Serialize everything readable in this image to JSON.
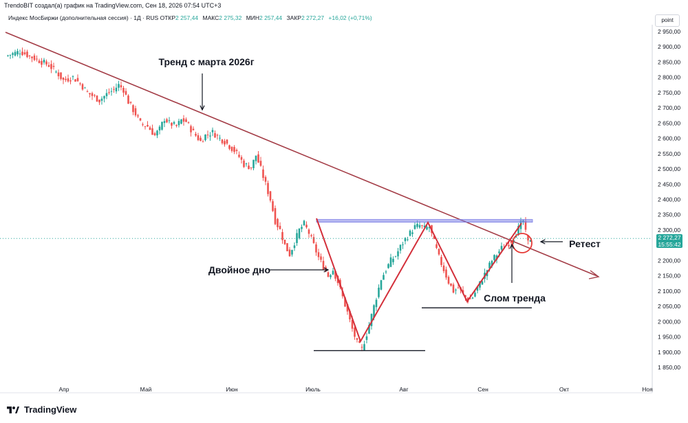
{
  "header": {
    "caption": "TrendoBIT создал(а) график на TradingView.com, Сен 18, 2026 07:54 UTC+3",
    "symbol": "Индекс МосБиржи (дополнительная сессия) · 1Д · RUS",
    "open_label": "ОТКР",
    "open_value": "2 257,44",
    "high_label": "МАКС",
    "high_value": "2 275,32",
    "low_label": "МИН",
    "low_value": "2 257,44",
    "close_label": "ЗАКР",
    "close_value": "2 272,27",
    "change": "+16,02 (+0,71%)"
  },
  "unit_button": "point",
  "last_price": {
    "value": "2 272,27",
    "time": "15:55:42"
  },
  "brand": {
    "name": "TradingView"
  },
  "colors": {
    "up": "#26a69a",
    "down": "#ef5350",
    "trendline": "#a33b45",
    "pattern": "#d32f3a",
    "resistance": "#7b7fe6",
    "price_line": "#26a69a"
  },
  "chart_data": {
    "type": "candlestick",
    "x_labels": [
      "Апр",
      "Май",
      "Июн",
      "Июль",
      "Авг",
      "Сен",
      "Окт",
      "Ноя"
    ],
    "y_ticks": [
      "2 950,00",
      "2 900,00",
      "2 850,00",
      "2 800,00",
      "2 750,00",
      "2 700,00",
      "2 650,00",
      "2 600,00",
      "2 550,00",
      "2 500,00",
      "2 450,00",
      "2 400,00",
      "2 350,00",
      "2 300,00",
      "2 250,00",
      "2 200,00",
      "2 150,00",
      "2 100,00",
      "2 050,00",
      "2 000,00",
      "1 950,00",
      "1 900,00",
      "1 850,00"
    ],
    "ylim": [
      1820,
      2970
    ],
    "close_path": [
      [
        0,
        2870
      ],
      [
        6,
        2885
      ],
      [
        10,
        2870
      ],
      [
        14,
        2855
      ],
      [
        18,
        2840
      ],
      [
        22,
        2810
      ],
      [
        24,
        2790
      ],
      [
        28,
        2800
      ],
      [
        31,
        2780
      ],
      [
        34,
        2750
      ],
      [
        37,
        2735
      ],
      [
        39,
        2725
      ],
      [
        42,
        2745
      ],
      [
        45,
        2760
      ],
      [
        47,
        2775
      ],
      [
        49,
        2760
      ],
      [
        51,
        2720
      ],
      [
        54,
        2680
      ],
      [
        56,
        2650
      ],
      [
        59,
        2640
      ],
      [
        62,
        2610
      ],
      [
        64,
        2630
      ],
      [
        66,
        2665
      ],
      [
        68,
        2650
      ],
      [
        71,
        2640
      ],
      [
        73,
        2660
      ],
      [
        75,
        2655
      ],
      [
        77,
        2630
      ],
      [
        79,
        2610
      ],
      [
        81,
        2590
      ],
      [
        83,
        2610
      ],
      [
        86,
        2620
      ],
      [
        89,
        2600
      ],
      [
        91,
        2590
      ],
      [
        93,
        2575
      ],
      [
        95,
        2560
      ],
      [
        97,
        2540
      ],
      [
        99,
        2515
      ],
      [
        102,
        2505
      ],
      [
        104,
        2545
      ],
      [
        106,
        2500
      ],
      [
        108,
        2450
      ],
      [
        110,
        2400
      ],
      [
        112,
        2330
      ],
      [
        114,
        2300
      ],
      [
        116,
        2250
      ],
      [
        118,
        2220
      ],
      [
        120,
        2260
      ],
      [
        122,
        2300
      ],
      [
        124,
        2320
      ],
      [
        126,
        2290
      ],
      [
        128,
        2250
      ],
      [
        130,
        2210
      ],
      [
        132,
        2180
      ],
      [
        134,
        2150
      ],
      [
        136,
        2170
      ],
      [
        138,
        2130
      ],
      [
        140,
        2080
      ],
      [
        142,
        2030
      ],
      [
        144,
        1975
      ],
      [
        146,
        1930
      ],
      [
        148,
        1910
      ],
      [
        150,
        1960
      ],
      [
        152,
        2020
      ],
      [
        154,
        2080
      ],
      [
        156,
        2140
      ],
      [
        158,
        2170
      ],
      [
        160,
        2200
      ],
      [
        162,
        2215
      ],
      [
        164,
        2245
      ],
      [
        166,
        2270
      ],
      [
        168,
        2290
      ],
      [
        170,
        2310
      ],
      [
        172,
        2315
      ],
      [
        174,
        2305
      ],
      [
        176,
        2310
      ],
      [
        178,
        2260
      ],
      [
        180,
        2210
      ],
      [
        182,
        2170
      ],
      [
        184,
        2130
      ],
      [
        186,
        2100
      ],
      [
        188,
        2110
      ],
      [
        190,
        2090
      ],
      [
        192,
        2070
      ],
      [
        194,
        2080
      ],
      [
        196,
        2110
      ],
      [
        198,
        2140
      ],
      [
        200,
        2170
      ],
      [
        202,
        2200
      ],
      [
        204,
        2220
      ],
      [
        206,
        2240
      ],
      [
        208,
        2250
      ],
      [
        210,
        2265
      ],
      [
        212,
        2290
      ],
      [
        214,
        2320
      ],
      [
        215,
        2330
      ],
      [
        216,
        2290
      ],
      [
        217,
        2258
      ],
      [
        218,
        2272
      ]
    ],
    "resistance_level": 2330,
    "double_bottom_levels": [
      1905,
      2045
    ],
    "annotations": [
      {
        "id": "trend-label",
        "text": "Тренд с марта 2026г"
      },
      {
        "id": "double-bottom-label",
        "text": "Двойное дно"
      },
      {
        "id": "breakout-label",
        "text": "Слом тренда"
      },
      {
        "id": "retest-label",
        "text": "Ретест"
      }
    ]
  }
}
